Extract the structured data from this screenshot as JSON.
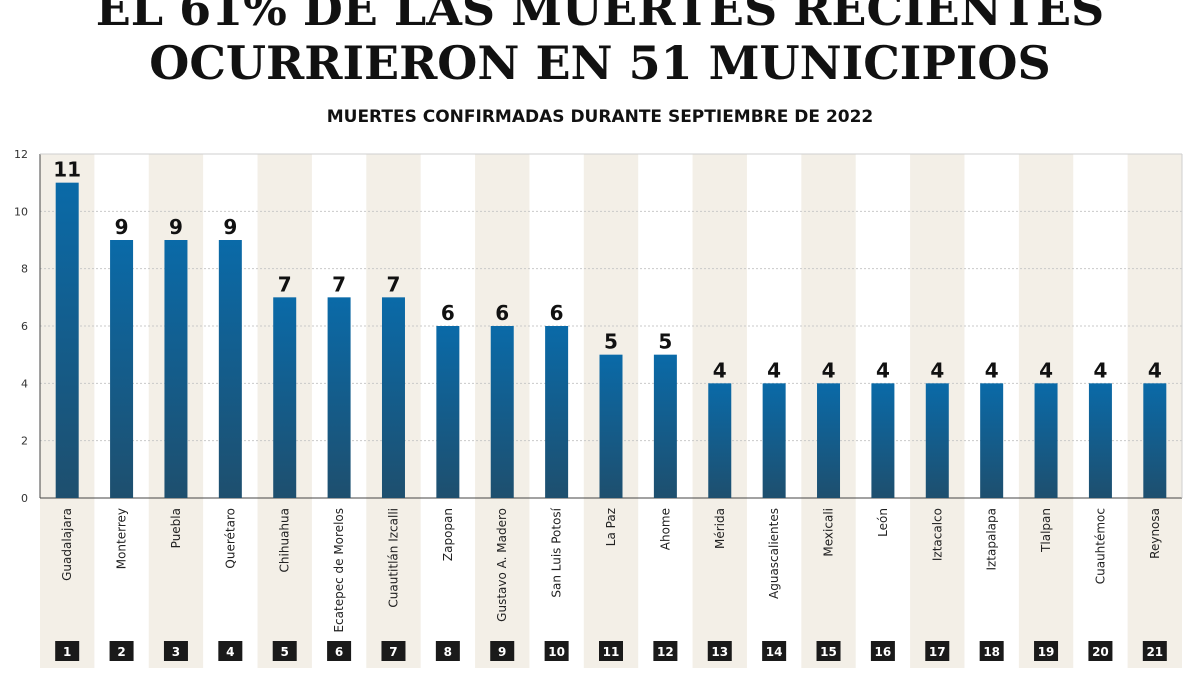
{
  "title_lines": [
    "EL 61% DE LAS MUERTES RECIENTES",
    "OCURRIERON EN 51 MUNICIPIOS"
  ],
  "subtitle": "MUERTES CONFIRMADAS DURANTE SEPTIEMBRE DE 2022",
  "colors": {
    "bar_top": "#0a6aa8",
    "bar_bottom": "#1e4f6e",
    "stripe": "#f3efe7",
    "rank_bg": "#1a1a1a",
    "rank_text": "#ffffff"
  },
  "chart_data": {
    "type": "bar",
    "title": "EL 61% DE LAS MUERTES RECIENTES OCURRIERON EN 51 MUNICIPIOS",
    "subtitle": "MUERTES CONFIRMADAS DURANTE SEPTIEMBRE DE 2022",
    "xlabel": "",
    "ylabel": "",
    "ylim": [
      0,
      12
    ],
    "yticks": [
      0,
      2,
      4,
      6,
      8,
      10,
      12
    ],
    "grid": true,
    "categories": [
      "Guadalajara",
      "Monterrey",
      "Puebla",
      "Querétaro",
      "Chihuahua",
      "Ecatepec de Morelos",
      "Cuautitlán Izcalli",
      "Zapopan",
      "Gustavo A. Madero",
      "San Luis Potosí",
      "La Paz",
      "Ahome",
      "Mérida",
      "Aguascalientes",
      "Mexicali",
      "León",
      "Iztacalco",
      "Iztapalapa",
      "Tlalpan",
      "Cuauhtémoc",
      "Reynosa"
    ],
    "values": [
      11,
      9,
      9,
      9,
      7,
      7,
      7,
      6,
      6,
      6,
      5,
      5,
      4,
      4,
      4,
      4,
      4,
      4,
      4,
      4,
      4
    ],
    "ranks": [
      "1",
      "2",
      "3",
      "4",
      "5",
      "6",
      "7",
      "8",
      "9",
      "10",
      "11",
      "12",
      "13",
      "14",
      "15",
      "16",
      "17",
      "18",
      "19",
      "20",
      "21"
    ]
  }
}
